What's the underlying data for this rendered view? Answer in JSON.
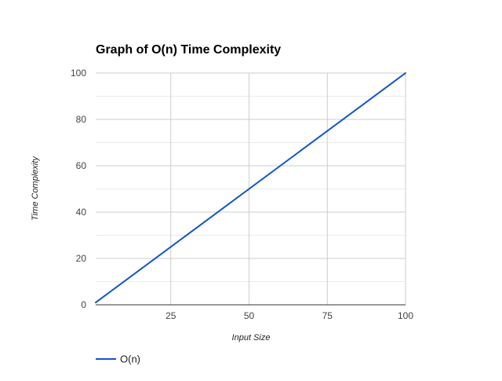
{
  "chart_data": {
    "type": "line",
    "title": "Graph of O(n) Time Complexity",
    "xlabel": "Input Size",
    "ylabel": "Time Complexity",
    "xlim": [
      1,
      100
    ],
    "ylim": [
      0,
      100
    ],
    "x_ticks": [
      25,
      50,
      75,
      100
    ],
    "y_ticks": [
      0,
      20,
      40,
      60,
      80,
      100
    ],
    "y_minor_ticks": [
      10,
      30,
      50,
      70,
      90
    ],
    "grid": true,
    "legend_position": "bottom-left",
    "series": [
      {
        "name": "O(n)",
        "color": "#1155cc",
        "x": [
          1,
          100
        ],
        "y": [
          1,
          100
        ]
      }
    ]
  },
  "colors": {
    "major_grid": "#cccccc",
    "minor_grid": "#ebebeb",
    "baseline": "#333333",
    "series": "#1155cc"
  }
}
